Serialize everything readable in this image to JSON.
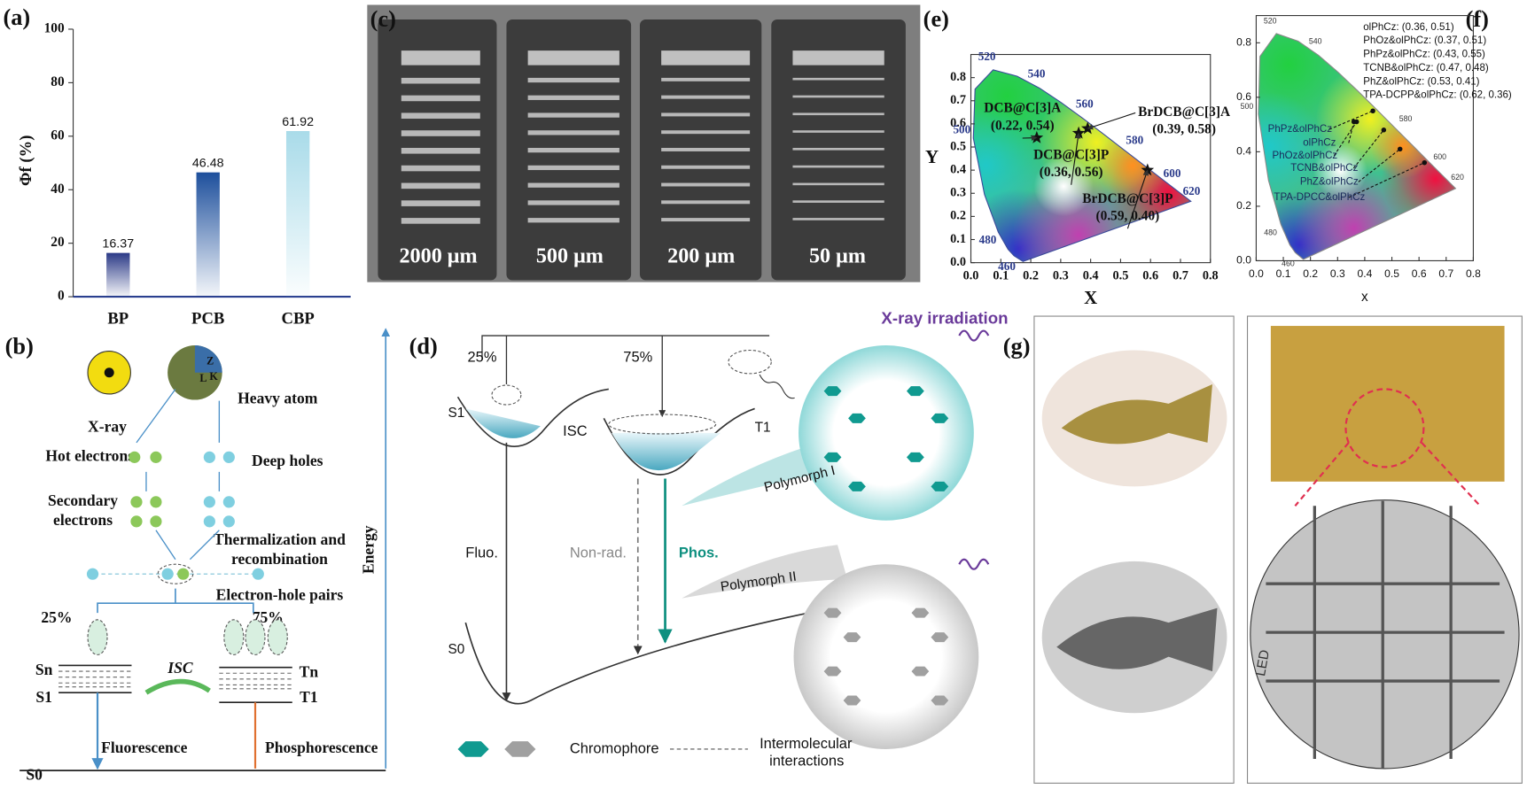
{
  "chart_data": [
    {
      "type": "bar",
      "panel": "(a)",
      "ylabel": "Φf (%)",
      "categories": [
        "BP",
        "PCB",
        "CBP"
      ],
      "values": [
        16.37,
        46.48,
        61.92
      ],
      "colors": [
        "#2b3a87",
        "#1d4f9c",
        "#a9dbe9"
      ],
      "ylim": [
        0,
        100
      ],
      "yticks": [
        0,
        20,
        40,
        60,
        80,
        100
      ]
    },
    {
      "type": "scatter",
      "panel": "(e)",
      "xlabel": "X",
      "ylabel": "Y",
      "marker": "star",
      "x": [
        0.22,
        0.39,
        0.36,
        0.59
      ],
      "y": [
        0.54,
        0.58,
        0.56,
        0.4
      ],
      "names": [
        "DCB@C[3]A",
        "BrDCB@C[3]A",
        "DCB@C[3]P",
        "BrDCB@C[3]P"
      ],
      "value_labels": [
        "(0.22, 0.54)",
        "(0.39, 0.58)",
        "(0.36, 0.56)",
        "(0.59, 0.40)"
      ],
      "wavelength_labels": [
        520,
        540,
        560,
        580,
        600,
        620,
        500,
        480,
        460
      ],
      "xlim": [
        0,
        0.8
      ],
      "ylim": [
        0,
        0.9
      ],
      "xticks": [
        {
          "value": 0,
          "label": "0.0"
        },
        0.1,
        0.2,
        0.3,
        0.4,
        0.5,
        0.6,
        0.7,
        0.8
      ],
      "yticks": [
        {
          "value": 0,
          "label": "0.0"
        },
        0.1,
        0.2,
        0.3,
        0.4,
        0.5,
        0.6,
        0.7,
        0.8
      ]
    },
    {
      "type": "scatter",
      "panel": "(f)",
      "xlabel": "x",
      "marker": "dot",
      "x": [
        0.36,
        0.37,
        0.43,
        0.47,
        0.53,
        0.62
      ],
      "y": [
        0.51,
        0.51,
        0.55,
        0.48,
        0.41,
        0.36
      ],
      "legend": [
        "olPhCz: (0.36, 0.51)",
        "PhOz&olPhCz: (0.37, 0.51)",
        "PhPz&olPhCz: (0.43, 0.55)",
        "TCNB&olPhCz: (0.47, 0.48)",
        "PhZ&olPhCz: (0.53, 0.41)",
        "TPA-DCPP&olPhCz: (0.62, 0.36)"
      ],
      "annotations": [
        "olPhCz",
        "PhOz&olPhCz",
        "PhPz&olPhCz",
        "TCNB&olPhCz",
        "PhZ&olPhCz",
        "TPA-DPCC&olPhCz"
      ],
      "wavelength_labels": [
        520,
        540,
        580,
        600,
        620,
        500,
        480,
        460
      ],
      "xlim": [
        0,
        0.8
      ],
      "ylim": [
        0,
        0.9
      ],
      "xticks": [
        {
          "value": 0,
          "label": "0.0"
        },
        0.1,
        0.2,
        0.3,
        0.4,
        0.5,
        0.6,
        0.7,
        0.8
      ],
      "yticks": [
        {
          "value": 0,
          "label": "0.0"
        },
        0.2,
        0.4,
        0.6,
        0.8
      ]
    }
  ],
  "panels": {
    "b": {
      "label": "(b)",
      "xray": "X-ray",
      "heavy_atom": "Heavy atom",
      "atom_labels": [
        "Z",
        "L",
        "K"
      ],
      "hot_electrons": "Hot electrons",
      "deep_holes": "Deep holes",
      "secondary": [
        "Secondary",
        "electrons"
      ],
      "thermalization": [
        "Thermalization and",
        "recombination"
      ],
      "pairs": "Electron-hole pairs",
      "left_pct": "25%",
      "right_pct": "75%",
      "isc": "ISC",
      "levels": [
        "Sn",
        "S1",
        "Tn",
        "T1",
        "S0"
      ],
      "fluorescence": "Fluorescence",
      "phosphorescence": "Phosphorescence",
      "energy": "Energy"
    },
    "c": {
      "label": "(c)",
      "scales": [
        "2000 μm",
        "500 μm",
        "200 μm",
        "50 μm"
      ]
    },
    "d": {
      "label": "(d)",
      "left_pct": "25%",
      "right_pct": "75%",
      "s1": "S1",
      "t1": "T1",
      "isc": "ISC",
      "fluo": "Fluo.",
      "nonrad": "Non-rad.",
      "phos": "Phos.",
      "s0": "S0",
      "xray": "X-ray irradiation",
      "poly1": "Polymorph I",
      "poly2": "Polymorph II",
      "chromophore": "Chromophore",
      "interactions": [
        "Intermolecular",
        "interactions"
      ]
    },
    "g": {
      "label": "(g)",
      "led": "LED"
    }
  }
}
